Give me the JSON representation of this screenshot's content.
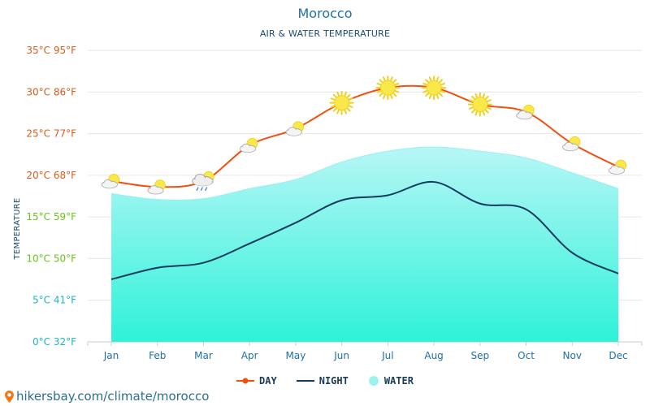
{
  "header": {
    "title": "Morocco",
    "subtitle": "AIR & WATER TEMPERATURE"
  },
  "footer": {
    "link_text": "hikersbay.com/climate/morocco"
  },
  "legend": {
    "day": "DAY",
    "night": "NIGHT",
    "water": "WATER"
  },
  "colors": {
    "day": "#f0500f",
    "night": "#0f3b5f",
    "water_top": "#b7f6f6",
    "water_bottom": "#2ef2d8",
    "grid": "#e6e6e6"
  },
  "chart_data": {
    "type": "line",
    "title": "AIR & WATER TEMPERATURE",
    "ylabel": "TEMPERATURE",
    "xlabel": "",
    "categories": [
      "Jan",
      "Feb",
      "Mar",
      "Apr",
      "May",
      "Jun",
      "Jul",
      "Aug",
      "Sep",
      "Oct",
      "Nov",
      "Dec"
    ],
    "ylim": [
      0,
      35
    ],
    "y_ticks": [
      {
        "value": 0,
        "label": "0°C 32°F",
        "color": "#1fb3c6"
      },
      {
        "value": 5,
        "label": "5°C 41°F",
        "color": "#1fb3c6"
      },
      {
        "value": 10,
        "label": "10°C 50°F",
        "color": "#6ac41c"
      },
      {
        "value": 15,
        "label": "15°C 59°F",
        "color": "#6ac41c"
      },
      {
        "value": 20,
        "label": "20°C 68°F",
        "color": "#dd5a1a"
      },
      {
        "value": 25,
        "label": "25°C 77°F",
        "color": "#dd5a1a"
      },
      {
        "value": 30,
        "label": "30°C 86°F",
        "color": "#dd5a1a"
      },
      {
        "value": 35,
        "label": "35°C 95°F",
        "color": "#dd5a1a"
      }
    ],
    "grid": true,
    "legend_position": "bottom",
    "series": [
      {
        "name": "DAY",
        "values": [
          19.3,
          18.6,
          19.3,
          23.6,
          25.6,
          28.7,
          30.5,
          30.5,
          28.5,
          27.6,
          23.8,
          21.0
        ]
      },
      {
        "name": "NIGHT",
        "values": [
          7.5,
          8.9,
          9.5,
          11.8,
          14.3,
          17.0,
          17.6,
          19.2,
          16.6,
          15.9,
          10.7,
          8.2
        ]
      },
      {
        "name": "WATER",
        "values": [
          17.8,
          17.1,
          17.2,
          18.4,
          19.5,
          21.6,
          22.9,
          23.4,
          22.9,
          22.1,
          20.3,
          18.4
        ]
      }
    ],
    "weather_icons": [
      "partly-cloudy",
      "partly-cloudy",
      "rain-cloud",
      "partly-cloudy",
      "partly-cloudy",
      "sun",
      "sun",
      "sun",
      "sun",
      "partly-cloudy",
      "partly-cloudy",
      "partly-cloudy"
    ]
  }
}
